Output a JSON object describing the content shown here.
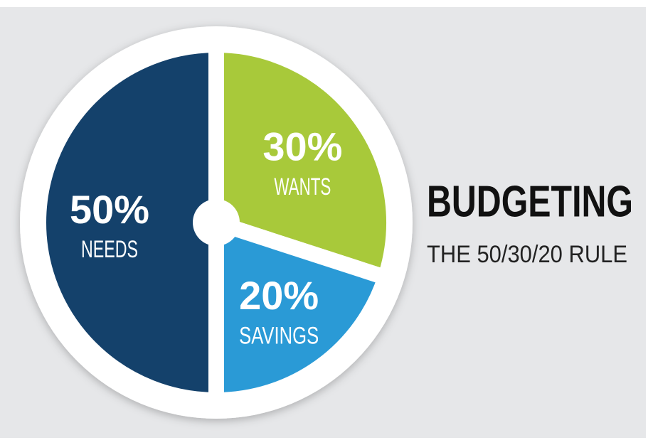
{
  "chart_data": {
    "type": "pie",
    "title": "BUDGETING",
    "subtitle": "THE 50/30/20 RULE",
    "categories": [
      "NEEDS",
      "WANTS",
      "SAVINGS"
    ],
    "values": [
      50,
      30,
      20
    ],
    "value_labels": [
      "50%",
      "30%",
      "20%"
    ],
    "colors": [
      "#14416b",
      "#a8c93a",
      "#2a9ad6"
    ]
  }
}
